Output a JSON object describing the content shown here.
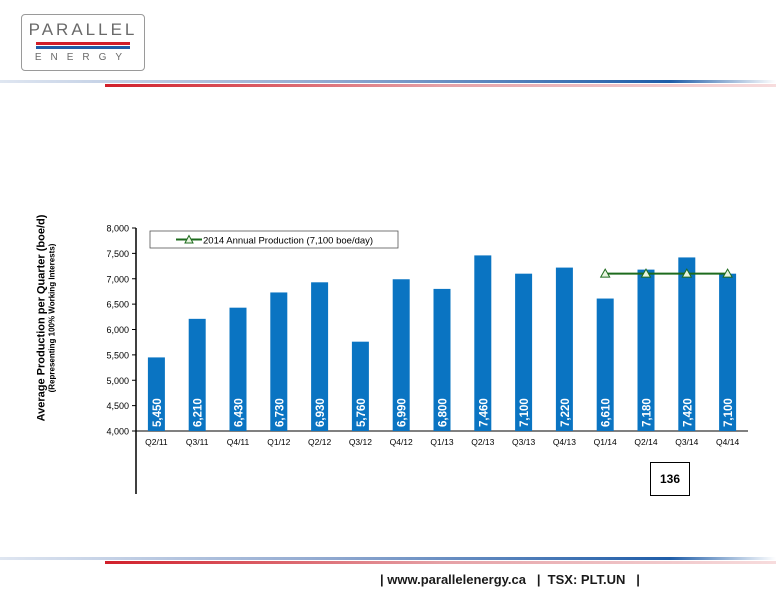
{
  "logo": {
    "top_word": "PARALLEL",
    "bottom_word": "ENERGY",
    "colors": {
      "red": "#d11f2a",
      "blue": "#1f5da8",
      "text": "#6a6a6a"
    }
  },
  "footer": {
    "text": "| www.parallelenergy.ca   |  TSX: PLT.UN   |"
  },
  "page_number": "136",
  "chart_data": {
    "type": "bar",
    "categories": [
      "Q2/11",
      "Q3/11",
      "Q4/11",
      "Q1/12",
      "Q2/12",
      "Q3/12",
      "Q4/12",
      "Q1/13",
      "Q2/13",
      "Q3/13",
      "Q4/13",
      "Q1/14",
      "Q2/14",
      "Q3/14",
      "Q4/14"
    ],
    "series": [
      {
        "values": [
          5450,
          6210,
          6430,
          6730,
          6930,
          5760,
          6990,
          6800,
          7460,
          7100,
          7220,
          6610,
          7180,
          7420,
          7100
        ],
        "data_labels": [
          "5,450",
          "6,210",
          "6,430",
          "6,730",
          "6,930",
          "5,760",
          "6,990",
          "6,800",
          "7,460",
          "7,100",
          "7,220",
          "6,610",
          "7,180",
          "7,420",
          "7,100"
        ],
        "color": "#0a74c2"
      },
      {
        "name": "2014 Annual Production (7,100 boe/day)",
        "type": "line",
        "x": [
          "Q1/14",
          "Q2/14",
          "Q3/14",
          "Q4/14"
        ],
        "values": [
          7100,
          7100,
          7100,
          7100
        ],
        "color": "#1e6b1e",
        "marker": "triangle"
      }
    ],
    "ylabel": "Average Production per Quarter (boe/d)",
    "ylabel_sub": "(Representing 100% Working Interests)",
    "ylim": [
      4000,
      8000
    ],
    "yticks": [
      4000,
      4500,
      5000,
      5500,
      6000,
      6500,
      7000,
      7500,
      8000
    ],
    "ytick_labels": [
      "4,000",
      "4,500",
      "5,000",
      "5,500",
      "6,000",
      "6,500",
      "7,000",
      "7,500",
      "8,000"
    ],
    "grid": false,
    "legend": "top-left"
  }
}
